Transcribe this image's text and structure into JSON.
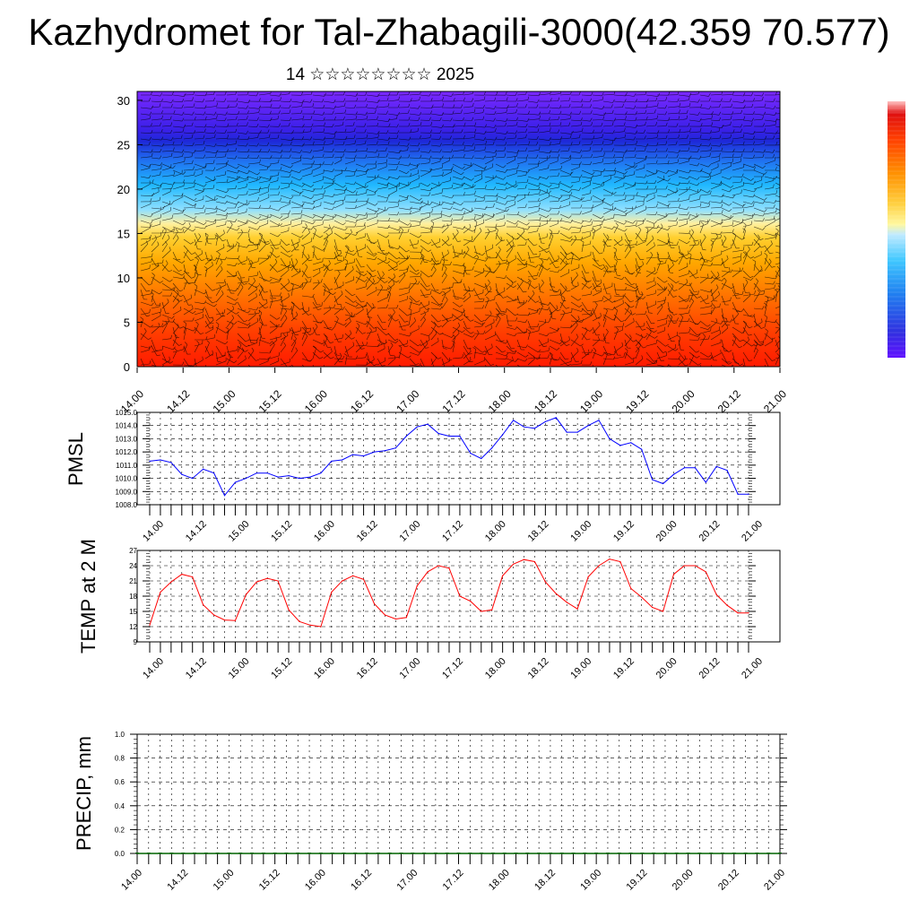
{
  "title": "Kazhydromet for Tal-Zhabagili-3000(42.359 70.577)",
  "subtitle": "14 ☆☆☆☆☆☆☆☆ 2025",
  "time_ticks": [
    "14.00",
    "14.12",
    "15.00",
    "15.12",
    "16.00",
    "16.12",
    "17.00",
    "17.12",
    "18.00",
    "18.12",
    "19.00",
    "19.12",
    "20.00",
    "20.12",
    "21.00"
  ],
  "colors": {
    "pmsl": "#0000ff",
    "temp": "#ff0000",
    "precip": "#006400"
  },
  "chart_data": [
    {
      "type": "heatmap",
      "name": "profile",
      "x_ticks": [
        "14.00",
        "14.12",
        "15.00",
        "15.12",
        "16.00",
        "16.12",
        "17.00",
        "17.12",
        "18.00",
        "18.12",
        "19.00",
        "19.12",
        "20.00",
        "20.12",
        "21.00"
      ],
      "y_ticks": [
        "0",
        "5",
        "10",
        "15",
        "20",
        "25",
        "30"
      ],
      "ylim": [
        0,
        31
      ],
      "colormap": [
        "#ff0000",
        "#ff6000",
        "#ffb000",
        "#ffff80",
        "#00c8ff",
        "#3060ff",
        "#2020e0",
        "#7020ff"
      ]
    },
    {
      "type": "line",
      "name": "PMSL",
      "ylabel": "PMSL",
      "y_ticks": [
        "1015.0",
        "1014.0",
        "1013.0",
        "1012.0",
        "1011.0",
        "1010.0",
        "1009.0",
        "1008.0"
      ],
      "ylim": [
        1008,
        1015
      ],
      "values": [
        1011.3,
        1011.4,
        1011.2,
        1010.3,
        1010.0,
        1010.7,
        1010.4,
        1008.7,
        1009.7,
        1010.0,
        1010.4,
        1010.4,
        1010.1,
        1010.2,
        1010.0,
        1010.1,
        1010.4,
        1011.3,
        1011.4,
        1011.8,
        1011.7,
        1012.0,
        1012.1,
        1012.3,
        1013.2,
        1013.9,
        1014.1,
        1013.4,
        1013.2,
        1013.2,
        1011.9,
        1011.5,
        1012.3,
        1013.3,
        1014.4,
        1013.9,
        1013.8,
        1014.3,
        1014.6,
        1013.5,
        1013.5,
        1014.0,
        1014.4,
        1013.0,
        1012.5,
        1012.7,
        1012.2,
        1009.9,
        1009.6,
        1010.3,
        1010.8,
        1010.8,
        1009.7,
        1010.9,
        1010.6,
        1008.8,
        1008.8
      ]
    },
    {
      "type": "line",
      "name": "TEMP",
      "ylabel": "TEMP at 2 M",
      "y_ticks": [
        "27",
        "24",
        "21",
        "18",
        "15",
        "12",
        "9"
      ],
      "ylim": [
        9,
        27
      ],
      "values": [
        12.3,
        18.8,
        20.8,
        22.3,
        21.8,
        16.3,
        14.3,
        13.3,
        13.2,
        18.3,
        20.8,
        21.5,
        21.0,
        15.3,
        13.0,
        12.3,
        12.0,
        18.8,
        21.0,
        22.0,
        21.3,
        16.5,
        14.3,
        13.5,
        13.8,
        20.0,
        22.8,
        24.0,
        23.5,
        18.0,
        17.0,
        15.0,
        15.3,
        22.0,
        24.3,
        25.2,
        24.8,
        20.8,
        18.5,
        16.8,
        15.5,
        21.8,
        24.0,
        25.3,
        24.8,
        19.5,
        17.8,
        15.8,
        15.0,
        22.3,
        24.0,
        24.0,
        22.8,
        18.3,
        16.2,
        14.7,
        14.7
      ]
    },
    {
      "type": "bar",
      "name": "PRECIP",
      "ylabel": "PRECIP, mm",
      "y_ticks": [
        "1.0",
        "0.8",
        "0.6",
        "0.4",
        "0.2",
        "0.0"
      ],
      "ylim": [
        0,
        1
      ],
      "values": [
        0,
        0,
        0,
        0,
        0,
        0,
        0,
        0,
        0,
        0,
        0,
        0,
        0,
        0,
        0,
        0,
        0,
        0,
        0,
        0,
        0,
        0,
        0,
        0,
        0,
        0,
        0,
        0,
        0,
        0,
        0,
        0,
        0,
        0,
        0,
        0,
        0,
        0,
        0,
        0,
        0,
        0,
        0,
        0,
        0,
        0,
        0,
        0,
        0,
        0,
        0,
        0,
        0,
        0,
        0,
        0,
        0
      ]
    }
  ]
}
